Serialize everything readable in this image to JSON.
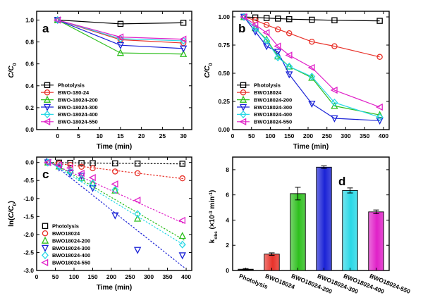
{
  "colors": {
    "photolysis": "#000000",
    "bwo18024": "#e8322a",
    "bwo200": "#2fbf1f",
    "bwo300": "#1b23d6",
    "bwo400": "#2ad8e6",
    "bwo550": "#e021c8"
  },
  "chart_data": [
    {
      "id": "a",
      "type": "line",
      "panel_label": "a",
      "xlabel": "Time (min)",
      "ylabel": "C/C0",
      "xlim": [
        -5,
        32
      ],
      "ylim": [
        0,
        1.08
      ],
      "x": [
        0,
        15,
        30
      ],
      "xticks": [
        0,
        5,
        10,
        15,
        20,
        25,
        30
      ],
      "yticks": [
        0.0,
        0.2,
        0.4,
        0.6,
        0.8,
        1.0
      ],
      "ytick_labels": [
        "0.0",
        "0.2",
        "0.4",
        "0.6",
        "0.8",
        "1.0"
      ],
      "legend_position": "bottom-left",
      "series": [
        {
          "name": "Photolysis",
          "marker": "square",
          "color": "photolysis",
          "values": [
            1.0,
            0.965,
            0.975
          ]
        },
        {
          "name": "BWO-180-24",
          "marker": "circle",
          "color": "bwo18024",
          "values": [
            1.0,
            0.82,
            0.79
          ]
        },
        {
          "name": "BWO-18024-200",
          "marker": "triangle-up",
          "color": "bwo200",
          "values": [
            1.0,
            0.7,
            0.69
          ]
        },
        {
          "name": "BWO-18024-300",
          "marker": "triangle-down",
          "color": "bwo300",
          "values": [
            1.0,
            0.77,
            0.74
          ]
        },
        {
          "name": "BWO-18024-400",
          "marker": "diamond",
          "color": "bwo400",
          "values": [
            1.0,
            0.83,
            0.81
          ]
        },
        {
          "name": "BWO-18024-550",
          "marker": "triangle-left",
          "color": "bwo550",
          "values": [
            1.0,
            0.845,
            0.825
          ]
        }
      ]
    },
    {
      "id": "b",
      "type": "line",
      "panel_label": "b",
      "xlabel": "Time (min)",
      "ylabel": "C/C0",
      "xlim": [
        0,
        415
      ],
      "ylim": [
        0,
        1.05
      ],
      "x": [
        30,
        60,
        90,
        120,
        150,
        210,
        270,
        390
      ],
      "xticks": [
        0,
        50,
        100,
        150,
        200,
        250,
        300,
        350,
        400
      ],
      "yticks": [
        0.0,
        0.25,
        0.5,
        0.75,
        1.0
      ],
      "ytick_labels": [
        "0.00",
        "0.25",
        "0.50",
        "0.75",
        "1.00"
      ],
      "legend_position": "bottom-left",
      "series": [
        {
          "name": "Photolysis",
          "marker": "square",
          "color": "photolysis",
          "values": [
            1.0,
            0.995,
            0.99,
            0.985,
            0.98,
            0.975,
            0.97,
            0.965
          ]
        },
        {
          "name": "BWO18024",
          "marker": "circle",
          "color": "bwo18024",
          "values": [
            1.0,
            0.97,
            0.93,
            0.89,
            0.855,
            0.78,
            0.74,
            0.645
          ]
        },
        {
          "name": "BWO18024-200",
          "marker": "triangle-up",
          "color": "bwo200",
          "values": [
            1.0,
            0.9,
            0.8,
            0.65,
            0.56,
            0.46,
            0.21,
            0.13
          ]
        },
        {
          "name": "BWO18024-300",
          "marker": "triangle-down",
          "color": "bwo300",
          "values": [
            1.0,
            0.87,
            0.74,
            0.69,
            0.49,
            0.23,
            0.1,
            0.08
          ]
        },
        {
          "name": "BWO18024-400",
          "marker": "diamond",
          "color": "bwo400",
          "values": [
            1.0,
            0.9,
            0.79,
            0.64,
            0.56,
            0.47,
            0.24,
            0.11
          ]
        },
        {
          "name": "BWO18024-550",
          "marker": "triangle-left",
          "color": "bwo550",
          "values": [
            1.0,
            0.93,
            0.86,
            0.74,
            0.66,
            0.55,
            0.35,
            0.2
          ]
        }
      ]
    },
    {
      "id": "c",
      "type": "scatter",
      "panel_label": "c",
      "xlabel": "Time (min)",
      "ylabel": "ln(C/C0)",
      "xlim": [
        0,
        415
      ],
      "ylim": [
        -3.0,
        0.15
      ],
      "x": [
        30,
        60,
        90,
        120,
        150,
        210,
        270,
        390
      ],
      "xticks": [
        0,
        50,
        100,
        150,
        200,
        250,
        300,
        350,
        400
      ],
      "yticks": [
        0.0,
        -0.5,
        -1.0,
        -1.5,
        -2.0,
        -2.5,
        -3.0
      ],
      "ytick_labels": [
        "0.0",
        "-0.5",
        "-1.0",
        "-1.5",
        "-2.0",
        "-2.5",
        "-3.0"
      ],
      "legend_position": "bottom-left",
      "series": [
        {
          "name": "Photolysis",
          "marker": "square",
          "color": "photolysis",
          "values": [
            0.0,
            -0.005,
            -0.01,
            -0.015,
            -0.02,
            -0.025,
            -0.03,
            -0.035
          ],
          "fit": [
            0.0,
            -0.0001
          ]
        },
        {
          "name": "BWO18024",
          "marker": "circle",
          "color": "bwo18024",
          "values": [
            0.0,
            -0.03,
            -0.07,
            -0.12,
            -0.16,
            -0.25,
            -0.3,
            -0.44
          ],
          "fit": [
            0.04,
            -0.00125
          ]
        },
        {
          "name": "BWO18024-200",
          "marker": "triangle-up",
          "color": "bwo200",
          "values": [
            0.0,
            -0.11,
            -0.22,
            -0.43,
            -0.58,
            -0.78,
            -1.56,
            -2.04
          ],
          "fit": [
            0.25,
            -0.0061
          ]
        },
        {
          "name": "BWO18024-300",
          "marker": "triangle-down",
          "color": "bwo300",
          "values": [
            0.0,
            -0.14,
            -0.3,
            -0.37,
            -0.71,
            -1.47,
            -2.43,
            -2.58
          ],
          "fit": [
            0.32,
            -0.0082
          ]
        },
        {
          "name": "BWO18024-400",
          "marker": "diamond",
          "color": "bwo400",
          "values": [
            0.0,
            -0.11,
            -0.24,
            -0.45,
            -0.58,
            -0.76,
            -1.43,
            -2.28
          ],
          "fit": [
            0.23,
            -0.0064
          ]
        },
        {
          "name": "BWO18024-550",
          "marker": "triangle-left",
          "color": "bwo550",
          "values": [
            0.0,
            -0.07,
            -0.15,
            -0.3,
            -0.42,
            -0.6,
            -1.05,
            -1.61
          ],
          "fit": [
            0.16,
            -0.0047
          ]
        }
      ]
    },
    {
      "id": "d",
      "type": "bar",
      "panel_label": "d",
      "ylabel": "kobs (×10⁻³ min⁻¹)",
      "ylim": [
        0,
        9
      ],
      "yticks": [
        0,
        2,
        4,
        6,
        8
      ],
      "ytick_labels": [
        "0",
        "2",
        "4",
        "6",
        "8"
      ],
      "categories": [
        "Photolysis",
        "BWO18024",
        "BWO18024-200",
        "BWO18024-300",
        "BWO18024-400",
        "BWO18024-550"
      ],
      "values": [
        0.1,
        1.3,
        6.1,
        8.2,
        6.35,
        4.65
      ],
      "errors": [
        0.05,
        0.1,
        0.5,
        0.1,
        0.2,
        0.15
      ],
      "bar_colors": [
        "photolysis",
        "bwo18024",
        "bwo200",
        "bwo300",
        "bwo400",
        "bwo550"
      ]
    }
  ]
}
